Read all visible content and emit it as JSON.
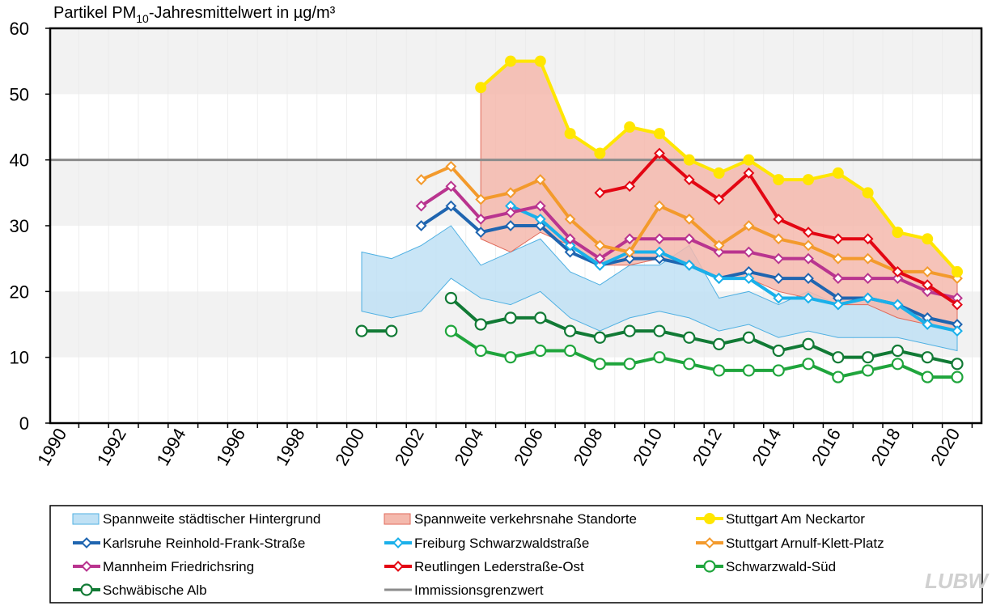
{
  "chart_data": {
    "type": "line",
    "title_prefix": "Partikel PM",
    "title_sub": "10",
    "title_suffix": "-Jahresmittelwert in µg/m³",
    "ylim": [
      0,
      60
    ],
    "yticks": [
      0,
      10,
      20,
      30,
      40,
      50,
      60
    ],
    "xlim": [
      1990,
      2021
    ],
    "xticks": [
      1990,
      1992,
      1994,
      1996,
      1998,
      2000,
      2002,
      2004,
      2006,
      2008,
      2010,
      2012,
      2014,
      2016,
      2018,
      2020
    ],
    "limit_value": 40,
    "limit_label": "Immissionsgrenzwert",
    "bands": [
      {
        "name": "Spannweite städtischer Hintergrund",
        "fill": "#bfe1f5",
        "stroke": "#4fb0e2",
        "x": [
          2000,
          2001,
          2002,
          2003,
          2004,
          2005,
          2006,
          2007,
          2008,
          2009,
          2010,
          2011,
          2012,
          2013,
          2014,
          2015,
          2016,
          2017,
          2018,
          2019,
          2020
        ],
        "upper": [
          26,
          25,
          27,
          30,
          24,
          26,
          28,
          23,
          21,
          24,
          24,
          27,
          19,
          20,
          18,
          20,
          18,
          19,
          18,
          15,
          14
        ],
        "lower": [
          17,
          16,
          17,
          22,
          19,
          18,
          20,
          16,
          14,
          16,
          17,
          16,
          14,
          15,
          13,
          14,
          13,
          13,
          13,
          12,
          11
        ]
      },
      {
        "name": "Spannweite verkehrsnahe Standorte",
        "fill": "#f4b9ad",
        "stroke": "#e06a5a",
        "x": [
          2004,
          2005,
          2006,
          2007,
          2008,
          2009,
          2010,
          2011,
          2012,
          2013,
          2014,
          2015,
          2016,
          2017,
          2018,
          2019,
          2020
        ],
        "upper": [
          51,
          55,
          55,
          44,
          41,
          45,
          44,
          40,
          38,
          40,
          37,
          37,
          38,
          35,
          29,
          28,
          23
        ],
        "lower": [
          28,
          26,
          29,
          27,
          24,
          24,
          25,
          24,
          22,
          22,
          20,
          19,
          18,
          18,
          16,
          15,
          14
        ]
      }
    ],
    "series": [
      {
        "name": "Stuttgart Am Neckartor",
        "color": "#ffe600",
        "marker": "dot",
        "x": [
          2004,
          2005,
          2006,
          2007,
          2008,
          2009,
          2010,
          2011,
          2012,
          2013,
          2014,
          2015,
          2016,
          2017,
          2018,
          2019,
          2020
        ],
        "values": [
          51,
          55,
          55,
          44,
          41,
          45,
          44,
          40,
          38,
          40,
          37,
          37,
          38,
          35,
          29,
          28,
          23
        ]
      },
      {
        "name": "Karlsruhe Reinhold-Frank-Straße",
        "color": "#1f65b0",
        "marker": "diamond",
        "x": [
          2002,
          2003,
          2004,
          2005,
          2006,
          2007,
          2008,
          2009,
          2010,
          2011,
          2012,
          2013,
          2014,
          2015,
          2016,
          2017,
          2018,
          2019,
          2020
        ],
        "values": [
          30,
          33,
          29,
          30,
          30,
          26,
          24,
          25,
          25,
          24,
          22,
          23,
          22,
          22,
          19,
          19,
          18,
          16,
          15
        ]
      },
      {
        "name": "Freiburg Schwarzwaldstraße",
        "color": "#1ab0ea",
        "marker": "diamond",
        "x": [
          2005,
          2006,
          2007,
          2008,
          2009,
          2010,
          2011,
          2012,
          2013,
          2014,
          2015,
          2016,
          2017,
          2018,
          2019,
          2020
        ],
        "values": [
          33,
          31,
          27,
          24,
          26,
          26,
          24,
          22,
          22,
          19,
          19,
          18,
          19,
          18,
          15,
          14
        ]
      },
      {
        "name": "Stuttgart Arnulf-Klett-Platz",
        "color": "#f39a2c",
        "marker": "diamond",
        "x": [
          2002,
          2003,
          2004,
          2005,
          2006,
          2007,
          2008,
          2009,
          2010,
          2011,
          2012,
          2013,
          2014,
          2015,
          2016,
          2017,
          2018,
          2019,
          2020
        ],
        "values": [
          37,
          39,
          34,
          35,
          37,
          31,
          27,
          26,
          33,
          31,
          27,
          30,
          28,
          27,
          25,
          25,
          23,
          23,
          22
        ]
      },
      {
        "name": "Mannheim Friedrichsring",
        "color": "#b9348f",
        "marker": "diamond",
        "x": [
          2002,
          2003,
          2004,
          2005,
          2006,
          2007,
          2008,
          2009,
          2010,
          2011,
          2012,
          2013,
          2014,
          2015,
          2016,
          2017,
          2018,
          2019,
          2020
        ],
        "values": [
          33,
          36,
          31,
          32,
          33,
          28,
          25,
          28,
          28,
          28,
          26,
          26,
          25,
          25,
          22,
          22,
          22,
          20,
          19
        ]
      },
      {
        "name": "Reutlingen Lederstraße-Ost",
        "color": "#e30613",
        "marker": "diamond",
        "x": [
          2008,
          2009,
          2010,
          2011,
          2012,
          2013,
          2014,
          2015,
          2016,
          2017,
          2018,
          2019,
          2020
        ],
        "values": [
          35,
          36,
          41,
          37,
          34,
          38,
          31,
          29,
          28,
          28,
          23,
          21,
          18
        ]
      },
      {
        "name": "Schwarzwald-Süd",
        "color": "#1fa53c",
        "marker": "circle",
        "x": [
          2003,
          2004,
          2005,
          2006,
          2007,
          2008,
          2009,
          2010,
          2011,
          2012,
          2013,
          2014,
          2015,
          2016,
          2017,
          2018,
          2019,
          2020
        ],
        "values": [
          14,
          11,
          10,
          11,
          11,
          9,
          9,
          10,
          9,
          8,
          8,
          8,
          9,
          7,
          8,
          9,
          7,
          7
        ]
      },
      {
        "name": "Schwäbische Alb",
        "color": "#117a35",
        "marker": "circle",
        "segments": [
          {
            "x": [
              2000,
              2001
            ],
            "values": [
              14,
              14
            ]
          },
          {
            "x": [
              2003,
              2004,
              2005,
              2006,
              2007,
              2008,
              2009,
              2010,
              2011,
              2012,
              2013,
              2014,
              2015,
              2016,
              2017,
              2018,
              2019,
              2020
            ],
            "values": [
              19,
              15,
              16,
              16,
              14,
              13,
              14,
              14,
              13,
              12,
              13,
              11,
              12,
              10,
              10,
              11,
              10,
              9
            ]
          }
        ]
      }
    ],
    "limit_color": "#8c8c8c",
    "legend": {
      "placement": "bottom",
      "entries": [
        {
          "label": "Spannweite städtischer Hintergrund",
          "kind": "band",
          "ref": 0
        },
        {
          "label": "Spannweite verkehrsnahe Standorte",
          "kind": "band",
          "ref": 1
        },
        {
          "label": "Stuttgart Am Neckartor",
          "kind": "series",
          "ref": 0
        },
        {
          "label": "Karlsruhe Reinhold-Frank-Straße",
          "kind": "series",
          "ref": 1
        },
        {
          "label": "Freiburg Schwarzwaldstraße",
          "kind": "series",
          "ref": 2
        },
        {
          "label": "Stuttgart Arnulf-Klett-Platz",
          "kind": "series",
          "ref": 3
        },
        {
          "label": "Mannheim Friedrichsring",
          "kind": "series",
          "ref": 4
        },
        {
          "label": "Reutlingen Lederstraße-Ost",
          "kind": "series",
          "ref": 5
        },
        {
          "label": "Schwarzwald-Süd",
          "kind": "series",
          "ref": 6
        },
        {
          "label": "Schwäbische Alb",
          "kind": "series",
          "ref": 7
        },
        {
          "label": "Immissionsgrenzwert",
          "kind": "limit"
        }
      ]
    }
  },
  "logo": {
    "text": "LUBW"
  }
}
